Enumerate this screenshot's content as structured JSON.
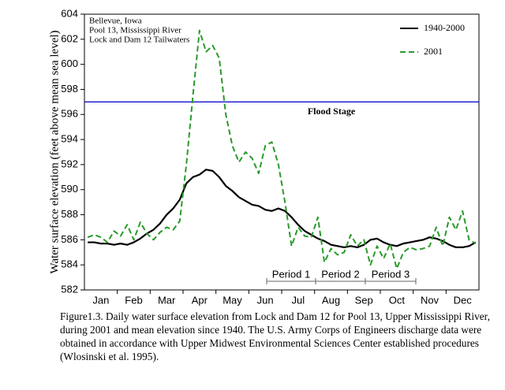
{
  "chart_data": {
    "type": "line",
    "y_label": "Water surface elevation (feet above mean sea level)",
    "annotation_lines": [
      "Bellevue, Iowa",
      "Pool 13, Mississippi River",
      "Lock and Dam 12 Tailwaters"
    ],
    "flood_stage": {
      "value": 597,
      "label": "Flood Stage",
      "color": "#0000cc"
    },
    "periods": [
      "Period 1",
      "Period 2",
      "Period 3"
    ],
    "caption": [
      "Figure1.3. Daily water surface elevation from Lock and Dam 12 for Pool 13, Upper Mississippi River,",
      "during 2001 and mean elevation since 1940.  The U.S. Army Corps of Engineers discharge data were",
      " obtained in accordance with Upper Midwest Environmental Sciences Center established procedures",
      "(Wlosinski et al. 1995)."
    ],
    "categories": [
      null,
      null,
      "Jan",
      null,
      null,
      null,
      null,
      "Feb",
      null,
      null,
      null,
      null,
      "Mar",
      null,
      null,
      null,
      null,
      "Apr",
      null,
      null,
      null,
      null,
      "May",
      null,
      null,
      null,
      null,
      "Jun",
      null,
      null,
      null,
      null,
      "Jul",
      null,
      null,
      null,
      null,
      "Aug",
      null,
      null,
      null,
      null,
      "Sep",
      null,
      null,
      null,
      null,
      "Oct",
      null,
      null,
      null,
      null,
      "Nov",
      null,
      null,
      null,
      null,
      "Dec",
      null,
      null
    ],
    "series": [
      {
        "name": "1940-2000",
        "color": "#000000",
        "values": [
          585.8,
          585.8,
          585.7,
          585.7,
          585.6,
          585.7,
          585.6,
          585.8,
          586.1,
          586.5,
          586.8,
          587.3,
          588.0,
          588.5,
          589.2,
          590.5,
          591.0,
          591.2,
          591.6,
          591.5,
          591.0,
          590.3,
          589.9,
          589.4,
          589.1,
          588.8,
          588.7,
          588.4,
          588.3,
          588.5,
          588.3,
          587.8,
          587.2,
          586.7,
          586.4,
          586.1,
          585.9,
          585.6,
          585.5,
          585.4,
          585.5,
          585.4,
          585.6,
          586.0,
          586.1,
          585.8,
          585.6,
          585.5,
          585.7,
          585.8,
          585.9,
          586.0,
          586.2,
          586.1,
          585.9,
          585.6,
          585.4,
          585.4,
          585.5,
          585.8
        ]
      },
      {
        "name": "2001",
        "color": "#2a9a2a",
        "values": [
          586.2,
          586.4,
          586.2,
          585.8,
          586.7,
          586.3,
          587.2,
          586.0,
          587.4,
          586.5,
          586.0,
          586.6,
          587.0,
          586.8,
          587.5,
          592.0,
          597.5,
          602.7,
          601.0,
          601.5,
          600.5,
          596.0,
          593.5,
          592.2,
          593.0,
          592.5,
          591.3,
          593.5,
          593.8,
          592.0,
          589.0,
          585.5,
          587.0,
          586.3,
          586.2,
          587.8,
          584.2,
          585.3,
          584.8,
          585.0,
          586.4,
          585.5,
          586.0,
          584.0,
          585.5,
          584.5,
          585.7,
          583.7,
          585.0,
          585.4,
          585.2,
          585.3,
          585.5,
          587.0,
          585.5,
          587.8,
          586.8,
          588.3,
          586.0,
          585.7
        ]
      }
    ],
    "ylim": [
      582,
      604
    ],
    "yticks": [
      582,
      584,
      586,
      588,
      590,
      592,
      594,
      596,
      598,
      600,
      602,
      604
    ],
    "legend": "upper right"
  }
}
